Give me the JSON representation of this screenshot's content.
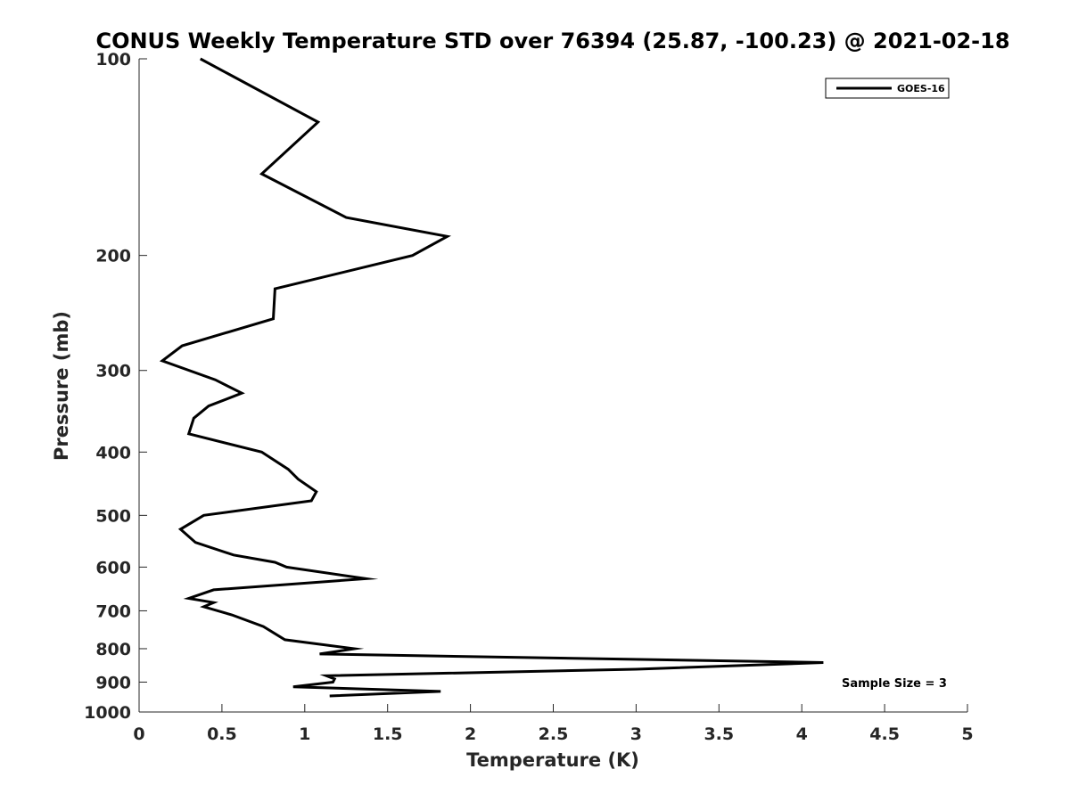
{
  "chart_data": {
    "type": "line",
    "title": "CONUS Weekly Temperature STD over 76394 (25.87, -100.23) @ 2021-02-18",
    "xlabel": "Temperature (K)",
    "ylabel": "Pressure (mb)",
    "xlim": [
      0,
      5
    ],
    "ylim": [
      100,
      1000
    ],
    "y_scale": "log",
    "y_reversed": true,
    "x_ticks": [
      "0",
      "0.5",
      "1",
      "1.5",
      "2",
      "2.5",
      "3",
      "3.5",
      "4",
      "4.5",
      "5"
    ],
    "y_ticks": [
      "100",
      "200",
      "300",
      "400",
      "500",
      "600",
      "700",
      "800",
      "900",
      "1000"
    ],
    "grid": false,
    "legend_position": "top-right",
    "annotation": "Sample Size = 3",
    "series": [
      {
        "name": "GOES-16",
        "color": "#000000",
        "points": [
          [
            0.37,
            100
          ],
          [
            1.08,
            125
          ],
          [
            0.74,
            150
          ],
          [
            1.25,
            175
          ],
          [
            1.86,
            187
          ],
          [
            1.65,
            200
          ],
          [
            0.82,
            225
          ],
          [
            0.81,
            250
          ],
          [
            0.26,
            275
          ],
          [
            0.14,
            290
          ],
          [
            0.46,
            310
          ],
          [
            0.62,
            325
          ],
          [
            0.42,
            340
          ],
          [
            0.33,
            355
          ],
          [
            0.3,
            375
          ],
          [
            0.74,
            400
          ],
          [
            0.9,
            425
          ],
          [
            0.96,
            440
          ],
          [
            1.07,
            460
          ],
          [
            1.04,
            475
          ],
          [
            0.39,
            500
          ],
          [
            0.25,
            525
          ],
          [
            0.34,
            550
          ],
          [
            0.57,
            575
          ],
          [
            0.82,
            590
          ],
          [
            0.89,
            600
          ],
          [
            1.37,
            625
          ],
          [
            0.45,
            650
          ],
          [
            0.3,
            670
          ],
          [
            0.45,
            680
          ],
          [
            0.39,
            690
          ],
          [
            0.56,
            710
          ],
          [
            0.75,
            740
          ],
          [
            0.88,
            775
          ],
          [
            1.3,
            800
          ],
          [
            1.09,
            815
          ],
          [
            4.13,
            840
          ],
          [
            3.0,
            860
          ],
          [
            1.13,
            880
          ],
          [
            1.18,
            890
          ],
          [
            1.17,
            900
          ],
          [
            0.93,
            915
          ],
          [
            1.82,
            930
          ],
          [
            1.15,
            945
          ]
        ]
      }
    ]
  }
}
